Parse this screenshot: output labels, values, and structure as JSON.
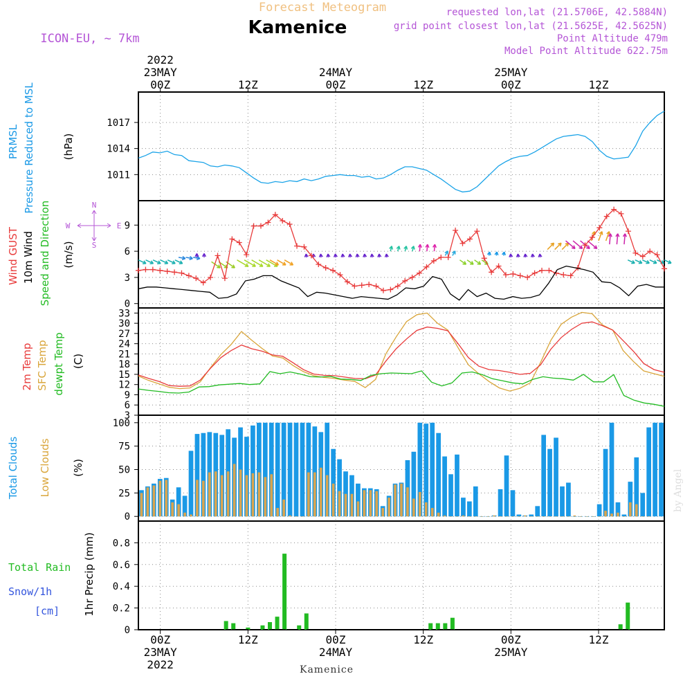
{
  "header": {
    "super_title": "Forecast Meteogram",
    "location": "Kamenice",
    "model": "ICON-EU, ~ 7km",
    "requested": "requested lon,lat (21.5706E, 42.5884N)",
    "grid_point": "grid point closest lon,lat (21.5625E, 42.5625N)",
    "point_altitude": "Point Altitude 479m",
    "model_altitude": "Model Point Altitude 622.75m"
  },
  "top_axis": {
    "year": "2022",
    "ticks": [
      {
        "hour": 0,
        "top": "23MAY",
        "label": "00Z"
      },
      {
        "hour": 12,
        "top": "",
        "label": "12Z"
      },
      {
        "hour": 24,
        "top": "24MAY",
        "label": "00Z"
      },
      {
        "hour": 36,
        "top": "",
        "label": "12Z"
      },
      {
        "hour": 48,
        "top": "25MAY",
        "label": "00Z"
      },
      {
        "hour": 60,
        "top": "",
        "label": "12Z"
      }
    ]
  },
  "bottom_axis": {
    "year": "2022",
    "ticks": [
      {
        "hour": 0,
        "label": "00Z",
        "sub": "23MAY"
      },
      {
        "hour": 12,
        "label": "12Z",
        "sub": ""
      },
      {
        "hour": 24,
        "label": "00Z",
        "sub": "24MAY"
      },
      {
        "hour": 36,
        "label": "12Z",
        "sub": ""
      },
      {
        "hour": 48,
        "label": "00Z",
        "sub": "25MAY"
      },
      {
        "hour": 60,
        "label": "12Z",
        "sub": ""
      }
    ]
  },
  "footer": {
    "location": "Kamenice",
    "credit": "by Angel"
  },
  "panel_labels": {
    "pressure": {
      "name1": "PRMSL",
      "name2": "Pressure Reduced to MSL",
      "unit": "(hPa)"
    },
    "wind": {
      "gust": "Wind GUST",
      "wind10": "10m Wind",
      "speed_dir": "Speed and Direction",
      "unit": "(m/s)",
      "compass_n": "N",
      "compass_s": "S",
      "compass_e": "E",
      "compass_w": "W"
    },
    "temp": {
      "t2m": "2m Temp",
      "sfc": "SFC Temp",
      "dew": "dewpt Temp",
      "unit": "(C)"
    },
    "clouds": {
      "total": "Total Clouds",
      "low": "Low Clouds",
      "unit": "(%)"
    },
    "precip": {
      "rain": "Total  Rain",
      "snow": "Snow/1h",
      "snow_unit": "[cm]",
      "ylabel": "1hr Precip (mm)"
    }
  },
  "colors": {
    "pressure": "#1aa3e8",
    "gust": "#e83a3a",
    "wind": "#000000",
    "t2m": "#e83a3a",
    "sfc": "#d9a53a",
    "dew": "#22bb22",
    "total_cloud": "#1a99e6",
    "low_cloud": "#d9a550",
    "rain": "#22bb22",
    "title_top": "#f0c080",
    "purple": "#b455d6",
    "blue_label": "#1a99e6"
  },
  "chart_data": [
    {
      "type": "line",
      "title": "PRMSL Pressure Reduced to MSL",
      "ylabel": "(hPa)",
      "ylim": [
        1008,
        1020.5
      ],
      "yticks": [
        1011,
        1014,
        1017
      ],
      "x_hours_start": -3,
      "x_hours_end": 69,
      "series": [
        {
          "name": "Pressure",
          "values": [
            1012.9,
            1013.2,
            1013.6,
            1013.5,
            1013.7,
            1013.3,
            1013.2,
            1012.6,
            1012.5,
            1012.4,
            1012.0,
            1011.9,
            1012.1,
            1012.0,
            1011.8,
            1011.2,
            1010.6,
            1010.1,
            1010.0,
            1010.2,
            1010.1,
            1010.3,
            1010.2,
            1010.5,
            1010.3,
            1010.5,
            1010.8,
            1010.9,
            1011.0,
            1010.9,
            1010.9,
            1010.7,
            1010.8,
            1010.5,
            1010.6,
            1011.0,
            1011.5,
            1011.9,
            1011.9,
            1011.7,
            1011.5,
            1011.0,
            1010.5,
            1009.9,
            1009.3,
            1009.0,
            1009.1,
            1009.6,
            1010.4,
            1011.2,
            1012.0,
            1012.5,
            1012.9,
            1013.1,
            1013.2,
            1013.6,
            1014.1,
            1014.6,
            1015.1,
            1015.4,
            1015.5,
            1015.6,
            1015.4,
            1014.8,
            1013.8,
            1013.1,
            1012.8,
            1012.9,
            1013.0,
            1014.3,
            1016.0,
            1017.0,
            1017.8,
            1018.3
          ]
        }
      ]
    },
    {
      "type": "line",
      "title": "Wind GUST / 10m Wind Speed and Direction",
      "ylabel": "(m/s)",
      "ylim": [
        -0.5,
        11.8
      ],
      "yticks": [
        0,
        3,
        6,
        9
      ],
      "series": [
        {
          "name": "Wind GUST",
          "values": [
            3.8,
            3.9,
            3.9,
            3.8,
            3.7,
            3.6,
            3.5,
            3.2,
            2.9,
            2.4,
            3.0,
            5.5,
            2.9,
            7.4,
            7.0,
            5.6,
            8.9,
            8.9,
            9.3,
            10.2,
            9.5,
            9.1,
            6.6,
            6.5,
            5.5,
            4.5,
            4.1,
            3.8,
            3.3,
            2.5,
            2.0,
            2.1,
            2.2,
            2.0,
            1.5,
            1.6,
            2.0,
            2.6,
            3.0,
            3.5,
            4.2,
            4.9,
            5.3,
            5.3,
            8.4,
            6.9,
            7.4,
            8.3,
            5.2,
            3.6,
            4.3,
            3.3,
            3.4,
            3.2,
            3.0,
            3.5,
            3.8,
            3.8,
            3.5,
            3.3,
            3.2,
            4.1,
            6.7,
            7.6,
            8.7,
            10.0,
            10.8,
            10.3,
            8.3,
            5.8,
            5.4,
            6.0,
            5.6,
            4.0
          ]
        },
        {
          "name": "10m Wind",
          "values": [
            1.7,
            1.9,
            1.9,
            1.8,
            1.7,
            1.6,
            1.5,
            1.4,
            1.3,
            0.6,
            0.7,
            1.1,
            2.6,
            2.8,
            3.2,
            3.2,
            2.6,
            2.2,
            1.8,
            0.8,
            1.3,
            1.2,
            1.0,
            0.8,
            0.6,
            0.8,
            0.7,
            0.6,
            0.5,
            1.0,
            1.8,
            1.7,
            2.0,
            3.1,
            2.8,
            1.1,
            0.4,
            1.6,
            0.8,
            1.2,
            0.6,
            0.5,
            0.8,
            0.6,
            0.7,
            1.0,
            2.3,
            3.9,
            4.3,
            4.1,
            3.9,
            3.6,
            2.5,
            2.4,
            1.8,
            0.9,
            2.0,
            2.2,
            1.9,
            1.9
          ]
        }
      ]
    },
    {
      "type": "line",
      "title": "2m Temp / SFC Temp / dewpt Temp",
      "ylabel": "(C)",
      "ylim": [
        3,
        34.5
      ],
      "yticks": [
        3,
        6,
        9,
        12,
        15,
        18,
        21,
        24,
        27,
        30,
        33
      ],
      "series": [
        {
          "name": "2m Temp",
          "values": [
            14.8,
            13.8,
            12.9,
            11.7,
            11.5,
            11.6,
            13.3,
            16.8,
            19.9,
            22.0,
            23.6,
            22.5,
            21.8,
            20.7,
            20.3,
            18.4,
            16.4,
            15.1,
            14.7,
            14.6,
            14.2,
            13.8,
            13.7,
            14.8,
            18.9,
            22.5,
            25.4,
            27.9,
            28.9,
            28.5,
            27.8,
            24.0,
            19.9,
            17.4,
            16.4,
            16.1,
            15.6,
            15.0,
            15.3,
            17.8,
            22.4,
            25.8,
            28.2,
            30.0,
            30.4,
            29.3,
            28.0,
            24.9,
            21.8,
            18.2,
            16.4,
            15.6
          ]
        },
        {
          "name": "SFC Temp",
          "values": [
            14.5,
            13.2,
            12.2,
            11.2,
            10.8,
            11.0,
            12.8,
            17.0,
            20.8,
            23.8,
            27.6,
            25.0,
            22.6,
            20.4,
            19.8,
            17.6,
            15.8,
            14.6,
            14.1,
            13.8,
            13.3,
            12.9,
            11.1,
            13.5,
            21.0,
            26.0,
            30.5,
            32.5,
            33.0,
            30.0,
            28.0,
            22.8,
            17.8,
            15.2,
            12.9,
            11.0,
            10.1,
            10.9,
            12.5,
            18.5,
            25.0,
            29.7,
            31.8,
            33.2,
            32.8,
            29.5,
            28.0,
            22.0,
            18.8,
            16.0,
            15.2,
            14.4
          ]
        },
        {
          "name": "dewpt Temp",
          "values": [
            10.7,
            10.3,
            10.0,
            9.6,
            9.5,
            9.8,
            11.3,
            11.4,
            11.9,
            12.1,
            12.3,
            12.0,
            12.2,
            15.8,
            15.2,
            15.7,
            15.1,
            14.3,
            14.2,
            14.4,
            13.6,
            13.5,
            13.2,
            14.7,
            15.2,
            15.4,
            15.3,
            15.2,
            16.0,
            12.7,
            11.6,
            12.5,
            15.4,
            15.7,
            14.9,
            13.7,
            13.1,
            12.5,
            12.2,
            13.5,
            14.3,
            13.9,
            13.7,
            13.3,
            15.0,
            12.8,
            12.8,
            14.9,
            8.8,
            7.4,
            6.6,
            6.2,
            5.6
          ]
        }
      ]
    },
    {
      "type": "bar",
      "title": "Total Clouds / Low Clouds",
      "ylabel": "(%)",
      "ylim": [
        -5,
        108
      ],
      "yticks": [
        0,
        25,
        50,
        75,
        100
      ],
      "series": [
        {
          "name": "Total Clouds",
          "values": [
            28,
            32,
            35,
            40,
            41,
            18,
            31,
            22,
            70,
            88,
            89,
            90,
            89,
            87,
            93,
            84,
            95,
            85,
            97,
            100,
            100,
            100,
            100,
            100,
            100,
            100,
            100,
            100,
            96,
            90,
            100,
            72,
            61,
            48,
            44,
            35,
            30,
            30,
            29,
            11,
            22,
            35,
            36,
            60,
            69,
            100,
            99,
            100,
            89,
            64,
            45,
            66,
            20,
            16,
            32,
            0,
            0,
            1,
            29,
            65,
            28,
            2,
            1,
            2,
            11,
            87,
            72,
            84,
            32,
            36,
            0,
            0,
            0,
            0,
            13,
            72,
            100,
            15,
            2,
            37,
            63,
            25,
            95,
            100,
            100
          ]
        },
        {
          "name": "Low Clouds",
          "values": [
            25,
            31,
            33,
            38,
            39,
            15,
            13,
            4,
            2,
            39,
            38,
            47,
            48,
            44,
            48,
            56,
            50,
            44,
            46,
            47,
            42,
            45,
            9,
            18,
            1,
            0,
            0,
            47,
            47,
            52,
            44,
            35,
            27,
            24,
            24,
            16,
            28,
            28,
            27,
            9,
            20,
            34,
            35,
            31,
            19,
            26,
            15,
            9,
            4,
            1,
            0,
            0,
            1,
            0,
            0,
            0,
            0,
            1,
            0,
            0,
            0,
            0,
            1,
            0,
            0,
            0,
            0,
            0,
            0,
            0,
            1,
            0,
            0,
            0,
            0,
            6,
            3,
            4,
            0,
            15,
            13,
            0,
            0
          ]
        }
      ]
    },
    {
      "type": "bar",
      "title": "1hr Precip",
      "ylabel": "1hr Precip (mm)",
      "ylim": [
        0,
        1.0
      ],
      "yticks": [
        0,
        0.2,
        0.4,
        0.6,
        0.8
      ],
      "series": [
        {
          "name": "Total Rain",
          "hours": [
            9,
            10,
            12,
            14,
            15,
            16,
            17,
            19,
            20,
            37,
            38,
            39,
            40,
            63,
            64
          ],
          "values": [
            0.08,
            0.06,
            0.02,
            0.04,
            0.07,
            0.12,
            0.7,
            0.04,
            0.15,
            0.06,
            0.06,
            0.06,
            0.11,
            0.05,
            0.25
          ]
        }
      ]
    }
  ]
}
